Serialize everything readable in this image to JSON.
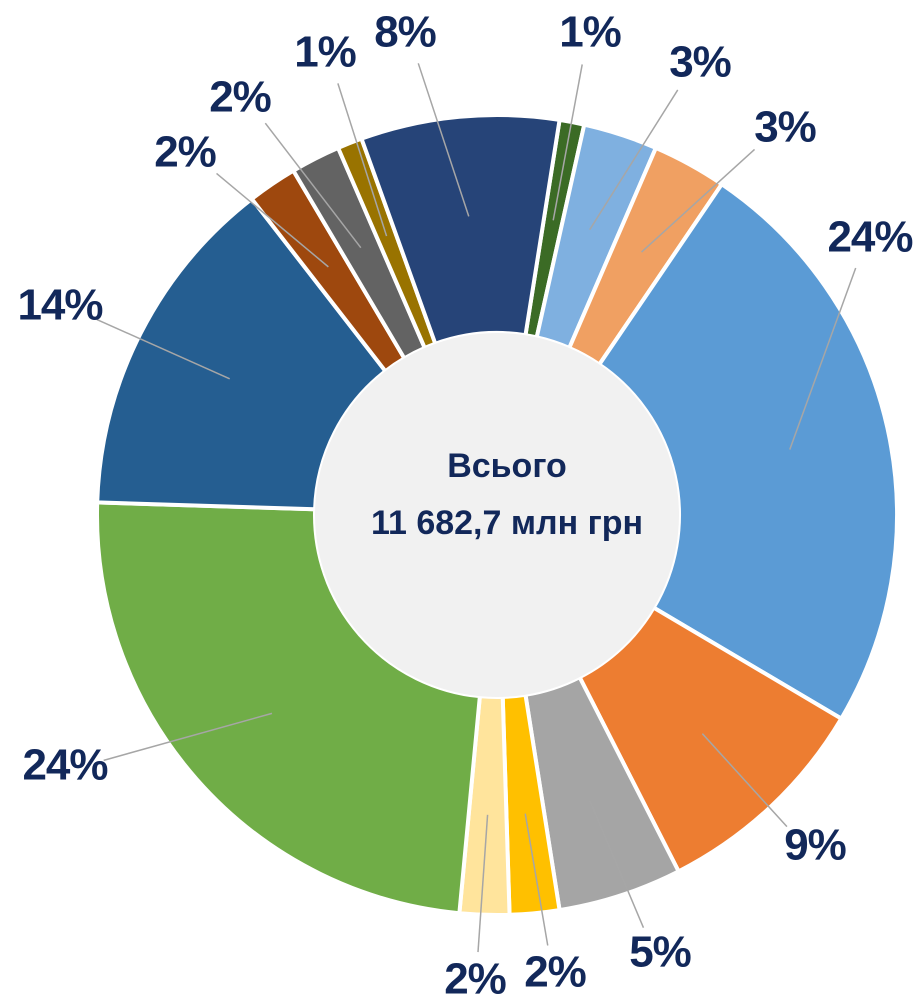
{
  "chart_data": {
    "type": "donut",
    "annotations": [
      "Всього",
      "11 682,7 млн грн"
    ],
    "categories": [
      null,
      null,
      null,
      null,
      null,
      null,
      null,
      null,
      null,
      null,
      null,
      null,
      null,
      null
    ],
    "values": [
      1,
      3,
      3,
      24,
      9,
      5,
      2,
      2,
      24,
      14,
      2,
      2,
      1,
      8
    ],
    "value_labels": [
      "1%",
      "3%",
      "3%",
      "24%",
      "9%",
      "5%",
      "2%",
      "2%",
      "24%",
      "14%",
      "2%",
      "2%",
      "1%",
      "8%"
    ],
    "colors": [
      "#3b6b25",
      "#7fb0e0",
      "#f0a062",
      "#5b9bd5",
      "#ed7d31",
      "#a5a5a5",
      "#ffc000",
      "#ffe49c",
      "#70ad47",
      "#255e91",
      "#9e480e",
      "#636363",
      "#997300",
      "#264478"
    ]
  }
}
